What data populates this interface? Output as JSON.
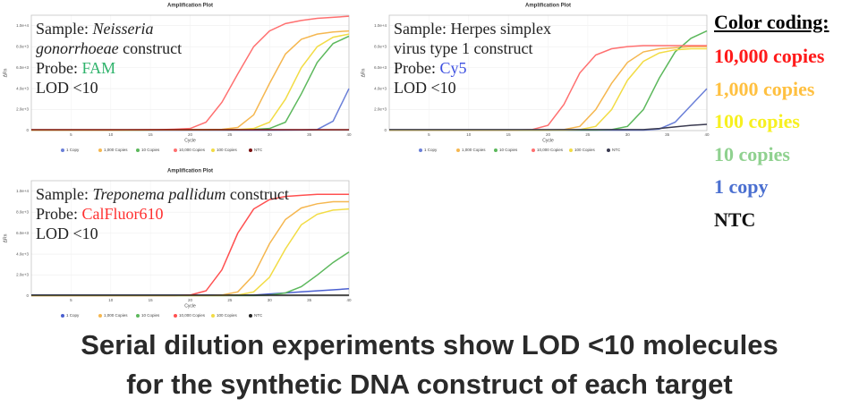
{
  "chart_data": [
    {
      "type": "line",
      "title": "Amplification Plot",
      "x_label": "Cycle",
      "y_label": "ΔRn",
      "xlim": [
        0,
        40
      ],
      "xticks": [
        5,
        10,
        15,
        20,
        25,
        30,
        35,
        40
      ],
      "ylim": [
        0,
        11000
      ],
      "yticks": [
        0,
        {
          "value": 2000,
          "label": "2.0e+3"
        },
        {
          "value": 4000,
          "label": "4.0e+3"
        },
        {
          "value": 6000,
          "label": "6.0e+3"
        },
        {
          "value": 8000,
          "label": "8.0e+3"
        },
        {
          "value": 10000,
          "label": "1.0e+4"
        }
      ],
      "grid": true,
      "x": [
        0,
        2,
        4,
        6,
        8,
        10,
        12,
        14,
        16,
        18,
        20,
        22,
        24,
        26,
        28,
        30,
        32,
        34,
        36,
        38,
        40
      ],
      "series": [
        {
          "name": "1 Copy",
          "color": "#6a7fd8",
          "values": [
            40,
            40,
            40,
            40,
            40,
            40,
            40,
            40,
            40,
            40,
            40,
            40,
            40,
            40,
            40,
            45,
            50,
            60,
            100,
            900,
            4000
          ]
        },
        {
          "name": "1,000 Copies",
          "color": "#f5b750",
          "values": [
            50,
            50,
            50,
            50,
            50,
            50,
            50,
            60,
            60,
            70,
            80,
            90,
            120,
            300,
            1500,
            4500,
            7300,
            8700,
            9200,
            9400,
            9500
          ]
        },
        {
          "name": "10 Copies",
          "color": "#5cb85c",
          "values": [
            50,
            50,
            50,
            50,
            50,
            50,
            50,
            50,
            60,
            60,
            70,
            70,
            80,
            90,
            120,
            200,
            800,
            3500,
            6500,
            8300,
            9000
          ]
        },
        {
          "name": "10,000 Copies",
          "color": "#ff7070",
          "values": [
            50,
            50,
            50,
            50,
            50,
            50,
            60,
            70,
            90,
            130,
            200,
            800,
            2700,
            5400,
            8000,
            9500,
            10200,
            10500,
            10700,
            10800,
            10900
          ]
        },
        {
          "name": "100 Copies",
          "color": "#f2dc45",
          "values": [
            50,
            50,
            50,
            50,
            50,
            50,
            50,
            50,
            60,
            60,
            70,
            80,
            90,
            110,
            200,
            800,
            3000,
            6000,
            8000,
            8900,
            9200
          ]
        },
        {
          "name": "NTC",
          "color": "#7a1010",
          "values": [
            80,
            80,
            80,
            80,
            80,
            80,
            80,
            80,
            80,
            80,
            80,
            80,
            80,
            80,
            80,
            80,
            80,
            80,
            80,
            80,
            80
          ]
        }
      ],
      "annotation": {
        "sample_label": "Sample:",
        "sample": "Neisseria gonorrhoeae",
        "italic_name": true,
        "sample_suffix": "construct",
        "probe_label": "Probe:",
        "probe": "FAM",
        "probe_color": "#2fb36b",
        "lod": "LOD <10"
      }
    },
    {
      "type": "line",
      "title": "Amplification Plot",
      "x_label": "Cycle",
      "y_label": "ΔRn",
      "xlim": [
        0,
        40
      ],
      "xticks": [
        5,
        10,
        15,
        20,
        25,
        30,
        35,
        40
      ],
      "ylim": [
        0,
        11000
      ],
      "yticks": [
        0,
        {
          "value": 2000,
          "label": "2.0e+3"
        },
        {
          "value": 4000,
          "label": "4.0e+3"
        },
        {
          "value": 6000,
          "label": "6.0e+3"
        },
        {
          "value": 8000,
          "label": "8.0e+3"
        },
        {
          "value": 10000,
          "label": "1.0e+4"
        }
      ],
      "grid": true,
      "x": [
        0,
        2,
        4,
        6,
        8,
        10,
        12,
        14,
        16,
        18,
        20,
        22,
        24,
        26,
        28,
        30,
        32,
        34,
        36,
        38,
        40
      ],
      "series": [
        {
          "name": "1 Copy",
          "color": "#6a7fd8",
          "values": [
            40,
            40,
            40,
            40,
            40,
            40,
            40,
            40,
            40,
            40,
            40,
            40,
            40,
            40,
            40,
            40,
            40,
            150,
            800,
            2400,
            4000
          ]
        },
        {
          "name": "1,000 Copies",
          "color": "#f5b750",
          "values": [
            50,
            50,
            50,
            50,
            50,
            50,
            50,
            50,
            50,
            50,
            50,
            100,
            400,
            2000,
            4500,
            6500,
            7500,
            7800,
            7900,
            8000,
            8000
          ]
        },
        {
          "name": "10 Copies",
          "color": "#5cb85c",
          "values": [
            50,
            50,
            50,
            50,
            50,
            50,
            50,
            50,
            50,
            50,
            50,
            50,
            50,
            50,
            100,
            400,
            2000,
            5000,
            7500,
            8800,
            9500
          ]
        },
        {
          "name": "10,000 Copies",
          "color": "#ff7070",
          "values": [
            50,
            50,
            50,
            50,
            50,
            50,
            50,
            50,
            50,
            100,
            500,
            2500,
            5500,
            7200,
            7800,
            8000,
            8100,
            8100,
            8100,
            8100,
            8100
          ]
        },
        {
          "name": "100 Copies",
          "color": "#f2dc45",
          "values": [
            50,
            50,
            50,
            50,
            50,
            50,
            50,
            50,
            50,
            50,
            50,
            50,
            100,
            400,
            2000,
            4800,
            6600,
            7400,
            7700,
            7800,
            7800
          ]
        },
        {
          "name": "NTC",
          "color": "#3a3a50",
          "values": [
            100,
            100,
            100,
            100,
            100,
            100,
            100,
            100,
            100,
            100,
            100,
            100,
            100,
            100,
            100,
            100,
            100,
            200,
            350,
            500,
            600
          ]
        }
      ],
      "annotation": {
        "sample_label": "Sample:",
        "sample": "Herpes simplex virus type 1",
        "italic_name": false,
        "sample_suffix": "construct",
        "probe_label": "Probe:",
        "probe": "Cy5",
        "probe_color": "#3c4fe0",
        "lod": "LOD <10"
      }
    },
    {
      "type": "line",
      "title": "Amplification Plot",
      "x_label": "Cycle",
      "y_label": "ΔRn",
      "xlim": [
        0,
        40
      ],
      "xticks": [
        5,
        10,
        15,
        20,
        25,
        30,
        35,
        40
      ],
      "ylim": [
        0,
        11000
      ],
      "yticks": [
        0,
        {
          "value": 2000,
          "label": "2.0e+3"
        },
        {
          "value": 4000,
          "label": "4.0e+3"
        },
        {
          "value": 6000,
          "label": "6.0e+3"
        },
        {
          "value": 8000,
          "label": "8.0e+3"
        },
        {
          "value": 10000,
          "label": "1.0e+4"
        }
      ],
      "grid": true,
      "x": [
        0,
        2,
        4,
        6,
        8,
        10,
        12,
        14,
        16,
        18,
        20,
        22,
        24,
        26,
        28,
        30,
        32,
        34,
        36,
        38,
        40
      ],
      "series": [
        {
          "name": "1 Copy",
          "color": "#4a5fd0",
          "values": [
            100,
            100,
            100,
            100,
            100,
            100,
            100,
            100,
            100,
            100,
            100,
            100,
            100,
            100,
            100,
            200,
            300,
            400,
            500,
            600,
            700
          ]
        },
        {
          "name": "1,000 Copies",
          "color": "#f5b750",
          "values": [
            50,
            50,
            50,
            50,
            50,
            50,
            50,
            50,
            50,
            50,
            50,
            50,
            100,
            400,
            2000,
            5000,
            7300,
            8400,
            8800,
            9000,
            9000
          ]
        },
        {
          "name": "10 Copies",
          "color": "#5cb85c",
          "values": [
            50,
            50,
            50,
            50,
            50,
            50,
            50,
            50,
            50,
            50,
            50,
            50,
            50,
            50,
            50,
            100,
            300,
            900,
            2000,
            3200,
            4200
          ]
        },
        {
          "name": "10,000 Copies",
          "color": "#ff5050",
          "values": [
            50,
            50,
            50,
            50,
            50,
            50,
            50,
            50,
            50,
            50,
            100,
            500,
            2500,
            6000,
            8300,
            9200,
            9500,
            9600,
            9700,
            9700,
            9700
          ]
        },
        {
          "name": "100 Copies",
          "color": "#f2dc45",
          "values": [
            50,
            50,
            50,
            50,
            50,
            50,
            50,
            50,
            50,
            50,
            50,
            50,
            50,
            100,
            400,
            1800,
            4500,
            6800,
            7800,
            8200,
            8300
          ]
        },
        {
          "name": "NTC",
          "color": "#222222",
          "values": [
            80,
            80,
            80,
            80,
            80,
            80,
            80,
            80,
            80,
            80,
            80,
            80,
            80,
            80,
            80,
            80,
            80,
            80,
            80,
            80,
            80
          ]
        }
      ],
      "annotation": {
        "sample_label": "Sample:",
        "sample": "Treponema pallidum",
        "italic_name": true,
        "sample_suffix": "construct",
        "probe_label": "Probe:",
        "probe": "CalFluor610",
        "probe_color": "#ff3030",
        "lod": "LOD <10"
      }
    }
  ],
  "color_coding": {
    "title": "Color coding:",
    "items": [
      {
        "label": "10,000 copies",
        "color": "#ff1a1a"
      },
      {
        "label": "1,000 copies",
        "color": "#ffc040"
      },
      {
        "label": "100 copies",
        "color": "#f7f020"
      },
      {
        "label": "10 copies",
        "color": "#8fd18f"
      },
      {
        "label": "1 copy",
        "color": "#4a6fd0"
      },
      {
        "label": "NTC",
        "color": "#111111"
      }
    ]
  },
  "caption": [
    "Serial dilution experiments show LOD <10 molecules",
    "for the synthetic DNA construct of each target"
  ]
}
